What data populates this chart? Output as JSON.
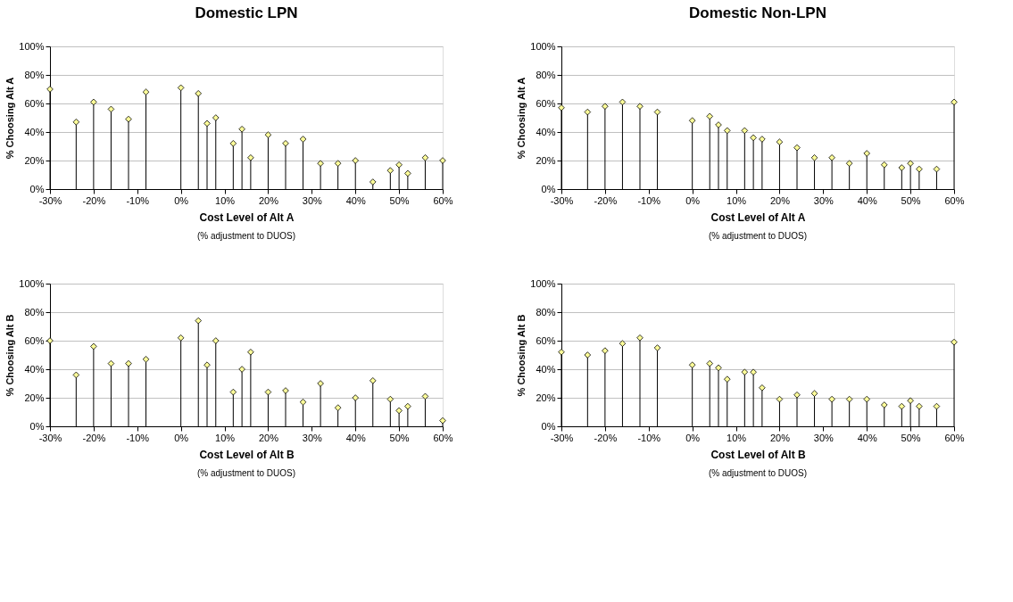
{
  "chart_data": [
    {
      "type": "lollipop",
      "title": "Domestic LPN",
      "xlabel": "Cost Level of Alt A",
      "ylabel": "% Choosing Alt A",
      "annotations": [
        "(% adjustment to DUOS)"
      ],
      "marker": "diamond",
      "grid": "y",
      "x": [
        -30,
        -24,
        -20,
        -16,
        -12,
        -8,
        0,
        4,
        6,
        8,
        12,
        14,
        16,
        20,
        24,
        28,
        32,
        36,
        40,
        44,
        48,
        50,
        52,
        56,
        60
      ],
      "series": [
        {
          "color": "#ffff99",
          "values": [
            70,
            47,
            61,
            56,
            49,
            68,
            71,
            67,
            46,
            50,
            32,
            42,
            22,
            38,
            32,
            35,
            18,
            18,
            20,
            5,
            13,
            17,
            11,
            22,
            20
          ]
        }
      ],
      "xlim": [
        -30,
        60
      ],
      "xticks": [
        {
          "value": -30,
          "label": "-30%"
        },
        {
          "value": -20,
          "label": "-20%"
        },
        {
          "value": -10,
          "label": "-10%"
        },
        {
          "value": 0,
          "label": "0%"
        },
        {
          "value": 10,
          "label": "10%"
        },
        {
          "value": 20,
          "label": "20%"
        },
        {
          "value": 30,
          "label": "30%"
        },
        {
          "value": 40,
          "label": "40%"
        },
        {
          "value": 50,
          "label": "50%"
        },
        {
          "value": 60,
          "label": "60%"
        }
      ],
      "ylim": [
        0,
        100
      ],
      "yticks": [
        {
          "value": 0,
          "label": "0%"
        },
        {
          "value": 20,
          "label": "20%"
        },
        {
          "value": 40,
          "label": "40%"
        },
        {
          "value": 60,
          "label": "60%"
        },
        {
          "value": 80,
          "label": "80%"
        },
        {
          "value": 100,
          "label": "100%"
        }
      ]
    },
    {
      "type": "lollipop",
      "title": "Domestic Non-LPN",
      "xlabel": "Cost Level of Alt A",
      "ylabel": "% Choosing Alt A",
      "annotations": [
        "(% adjustment to DUOS)"
      ],
      "marker": "diamond",
      "grid": "y",
      "x": [
        -30,
        -24,
        -20,
        -16,
        -12,
        -8,
        0,
        4,
        6,
        8,
        12,
        14,
        16,
        20,
        24,
        28,
        32,
        36,
        40,
        44,
        48,
        50,
        52,
        56,
        60
      ],
      "series": [
        {
          "color": "#ffff99",
          "values": [
            57,
            54,
            58,
            61,
            58,
            54,
            48,
            51,
            45,
            41,
            41,
            36,
            35,
            33,
            29,
            22,
            22,
            18,
            25,
            17,
            15,
            18,
            14,
            14,
            61
          ]
        }
      ],
      "xlim": [
        -30,
        60
      ],
      "xticks": [
        {
          "value": -30,
          "label": "-30%"
        },
        {
          "value": -20,
          "label": "-20%"
        },
        {
          "value": -10,
          "label": "-10%"
        },
        {
          "value": 0,
          "label": "0%"
        },
        {
          "value": 10,
          "label": "10%"
        },
        {
          "value": 20,
          "label": "20%"
        },
        {
          "value": 30,
          "label": "30%"
        },
        {
          "value": 40,
          "label": "40%"
        },
        {
          "value": 50,
          "label": "50%"
        },
        {
          "value": 60,
          "label": "60%"
        }
      ],
      "ylim": [
        0,
        100
      ],
      "yticks": [
        {
          "value": 0,
          "label": "0%"
        },
        {
          "value": 20,
          "label": "20%"
        },
        {
          "value": 40,
          "label": "40%"
        },
        {
          "value": 60,
          "label": "60%"
        },
        {
          "value": 80,
          "label": "80%"
        },
        {
          "value": 100,
          "label": "100%"
        }
      ]
    },
    {
      "type": "lollipop",
      "xlabel": "Cost Level of Alt B",
      "ylabel": "% Choosing Alt B",
      "annotations": [
        "(% adjustment to DUOS)"
      ],
      "marker": "diamond",
      "grid": "y",
      "x": [
        -30,
        -24,
        -20,
        -16,
        -12,
        -8,
        0,
        4,
        6,
        8,
        12,
        14,
        16,
        20,
        24,
        28,
        32,
        36,
        40,
        44,
        48,
        50,
        52,
        56,
        60
      ],
      "series": [
        {
          "color": "#ffff99",
          "values": [
            60,
            36,
            56,
            44,
            44,
            47,
            62,
            74,
            43,
            60,
            24,
            40,
            52,
            24,
            25,
            17,
            30,
            13,
            20,
            32,
            19,
            11,
            14,
            21,
            4
          ]
        }
      ],
      "xlim": [
        -30,
        60
      ],
      "xticks": [
        {
          "value": -30,
          "label": "-30%"
        },
        {
          "value": -20,
          "label": "-20%"
        },
        {
          "value": -10,
          "label": "-10%"
        },
        {
          "value": 0,
          "label": "0%"
        },
        {
          "value": 10,
          "label": "10%"
        },
        {
          "value": 20,
          "label": "20%"
        },
        {
          "value": 30,
          "label": "30%"
        },
        {
          "value": 40,
          "label": "40%"
        },
        {
          "value": 50,
          "label": "50%"
        },
        {
          "value": 60,
          "label": "60%"
        }
      ],
      "ylim": [
        0,
        100
      ],
      "yticks": [
        {
          "value": 0,
          "label": "0%"
        },
        {
          "value": 20,
          "label": "20%"
        },
        {
          "value": 40,
          "label": "40%"
        },
        {
          "value": 60,
          "label": "60%"
        },
        {
          "value": 80,
          "label": "80%"
        },
        {
          "value": 100,
          "label": "100%"
        }
      ]
    },
    {
      "type": "lollipop",
      "xlabel": "Cost Level of Alt B",
      "ylabel": "% Choosing Alt B",
      "annotations": [
        "(% adjustment to DUOS)"
      ],
      "marker": "diamond",
      "grid": "y",
      "x": [
        -30,
        -24,
        -20,
        -16,
        -12,
        -8,
        0,
        4,
        6,
        8,
        12,
        14,
        16,
        20,
        24,
        28,
        32,
        36,
        40,
        44,
        48,
        50,
        52,
        56,
        60
      ],
      "series": [
        {
          "color": "#ffff99",
          "values": [
            52,
            50,
            53,
            58,
            62,
            55,
            43,
            44,
            41,
            33,
            38,
            38,
            27,
            19,
            22,
            23,
            19,
            19,
            19,
            15,
            14,
            18,
            14,
            14,
            59
          ]
        }
      ],
      "xlim": [
        -30,
        60
      ],
      "xticks": [
        {
          "value": -30,
          "label": "-30%"
        },
        {
          "value": -20,
          "label": "-20%"
        },
        {
          "value": -10,
          "label": "-10%"
        },
        {
          "value": 0,
          "label": "0%"
        },
        {
          "value": 10,
          "label": "10%"
        },
        {
          "value": 20,
          "label": "20%"
        },
        {
          "value": 30,
          "label": "30%"
        },
        {
          "value": 40,
          "label": "40%"
        },
        {
          "value": 50,
          "label": "50%"
        },
        {
          "value": 60,
          "label": "60%"
        }
      ],
      "ylim": [
        0,
        100
      ],
      "yticks": [
        {
          "value": 0,
          "label": "0%"
        },
        {
          "value": 20,
          "label": "20%"
        },
        {
          "value": 40,
          "label": "40%"
        },
        {
          "value": 60,
          "label": "60%"
        },
        {
          "value": 80,
          "label": "80%"
        },
        {
          "value": 100,
          "label": "100%"
        }
      ]
    }
  ]
}
